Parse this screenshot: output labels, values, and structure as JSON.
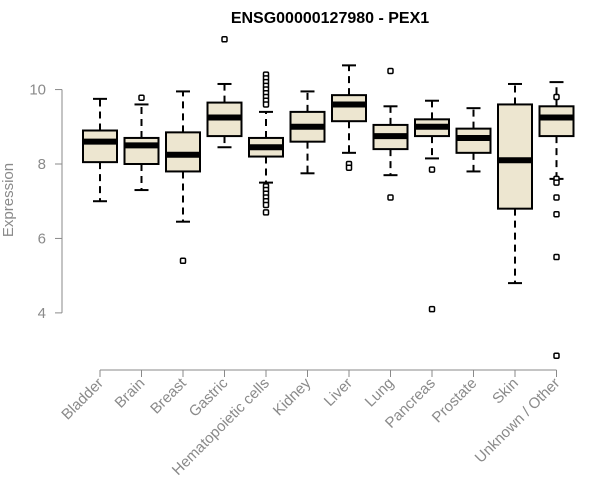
{
  "chart_data": {
    "type": "boxplot",
    "title": "ENSG00000127980 - PEX1",
    "xlabel": "",
    "ylabel": "Expression",
    "ylim": [
      2.6,
      11.6
    ],
    "yticks": [
      4,
      6,
      8,
      10
    ],
    "categories": [
      "Bladder",
      "Brain",
      "Breast",
      "Gastric",
      "Hematopoietic cells",
      "Kidney",
      "Liver",
      "Lung",
      "Pancreas",
      "Prostate",
      "Skin",
      "Unknown / Other"
    ],
    "box_fill": "#ede6d0",
    "series": [
      {
        "name": "Bladder",
        "q1": 8.05,
        "median": 8.6,
        "q3": 8.9,
        "whisker_low": 7.0,
        "whisker_high": 9.75,
        "outliers": []
      },
      {
        "name": "Brain",
        "q1": 8.0,
        "median": 8.5,
        "q3": 8.7,
        "whisker_low": 7.3,
        "whisker_high": 9.6,
        "outliers": [
          9.78
        ]
      },
      {
        "name": "Breast",
        "q1": 7.8,
        "median": 8.25,
        "q3": 8.85,
        "whisker_low": 6.45,
        "whisker_high": 9.95,
        "outliers": [
          5.4
        ]
      },
      {
        "name": "Gastric",
        "q1": 8.75,
        "median": 9.25,
        "q3": 9.65,
        "whisker_low": 8.45,
        "whisker_high": 10.15,
        "outliers": [
          11.35
        ]
      },
      {
        "name": "Hematopoietic cells",
        "q1": 8.2,
        "median": 8.45,
        "q3": 8.7,
        "whisker_low": 7.5,
        "whisker_high": 9.4,
        "outliers": [
          10.4,
          10.3,
          10.2,
          10.1,
          10.0,
          9.9,
          9.8,
          9.7,
          9.6,
          7.4,
          7.3,
          7.2,
          7.1,
          7.0,
          6.9,
          6.7
        ]
      },
      {
        "name": "Kidney",
        "q1": 8.6,
        "median": 9.0,
        "q3": 9.4,
        "whisker_low": 7.75,
        "whisker_high": 9.95,
        "outliers": []
      },
      {
        "name": "Liver",
        "q1": 9.15,
        "median": 9.6,
        "q3": 9.85,
        "whisker_low": 8.3,
        "whisker_high": 10.65,
        "outliers": [
          8.0,
          7.9
        ]
      },
      {
        "name": "Lung",
        "q1": 8.4,
        "median": 8.75,
        "q3": 9.05,
        "whisker_low": 7.7,
        "whisker_high": 9.55,
        "outliers": [
          10.5,
          7.1
        ]
      },
      {
        "name": "Pancreas",
        "q1": 8.75,
        "median": 9.0,
        "q3": 9.2,
        "whisker_low": 8.15,
        "whisker_high": 9.7,
        "outliers": [
          7.85,
          4.1
        ]
      },
      {
        "name": "Prostate",
        "q1": 8.3,
        "median": 8.7,
        "q3": 8.95,
        "whisker_low": 7.8,
        "whisker_high": 9.5,
        "outliers": []
      },
      {
        "name": "Skin",
        "q1": 6.8,
        "median": 8.1,
        "q3": 9.6,
        "whisker_low": 4.8,
        "whisker_high": 10.15,
        "outliers": []
      },
      {
        "name": "Unknown / Other",
        "q1": 8.75,
        "median": 9.25,
        "q3": 9.55,
        "whisker_low": 7.6,
        "whisker_high": 10.2,
        "outliers": [
          9.8,
          7.6,
          7.5,
          7.1,
          6.65,
          5.5,
          2.85
        ]
      }
    ]
  }
}
